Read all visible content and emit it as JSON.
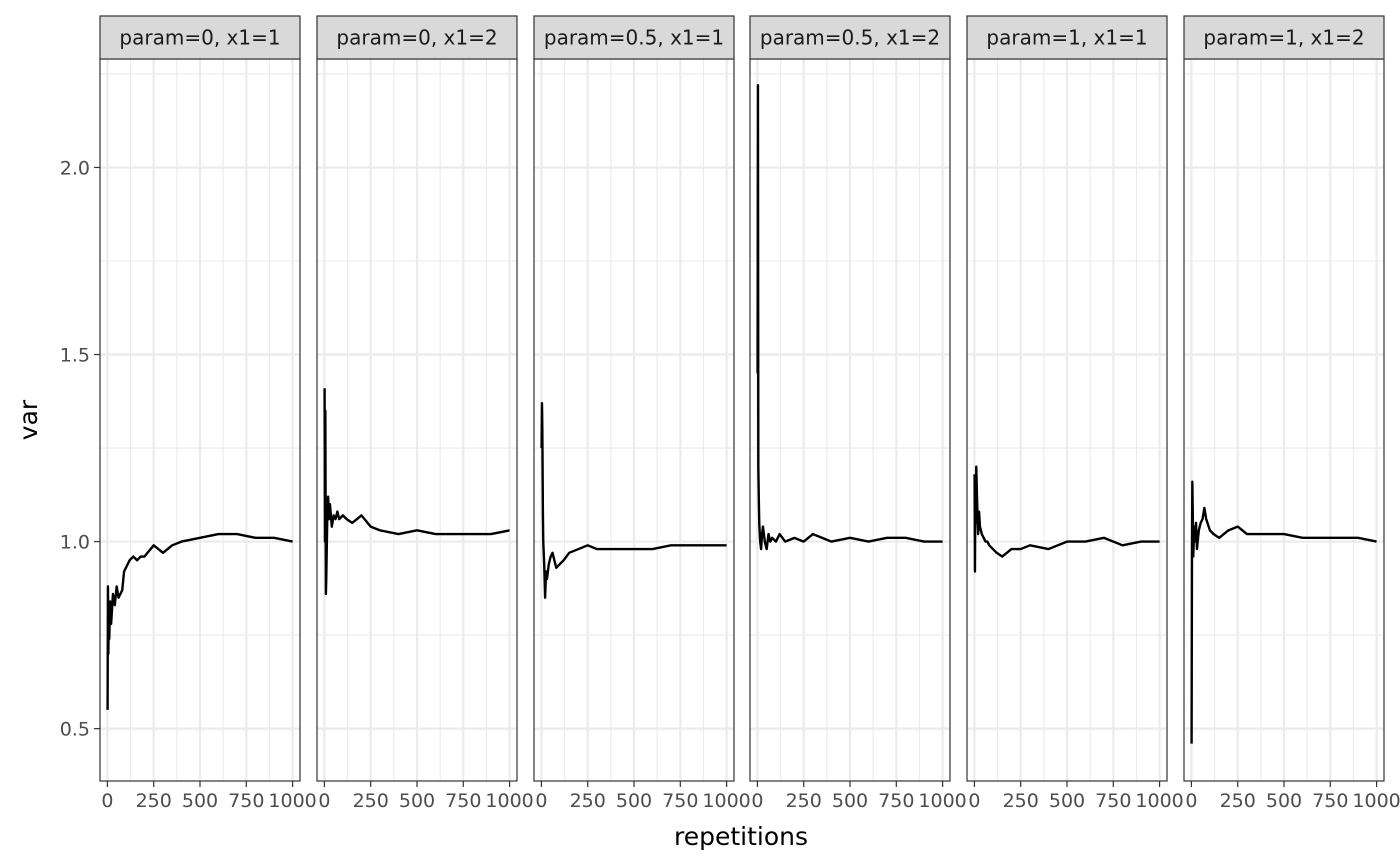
{
  "chart_data": {
    "type": "line",
    "facet_layout": "single row of 6 panels",
    "xlabel": "repetitions",
    "ylabel": "var",
    "xlim": [
      -40,
      1040
    ],
    "ylim": [
      0.36,
      2.29
    ],
    "x_ticks": [
      0,
      250,
      500,
      750,
      1000
    ],
    "x_tick_labels": [
      "0",
      "250",
      "500",
      "750",
      "1000"
    ],
    "y_ticks": [
      0.5,
      1.0,
      1.5,
      2.0
    ],
    "y_tick_labels": [
      "0.5",
      "1.0",
      "1.5",
      "2.0"
    ],
    "grid": true,
    "line_color": "#000000",
    "panels": [
      {
        "strip": "param=0, x1=1",
        "x": [
          1,
          3,
          5,
          8,
          10,
          15,
          20,
          25,
          30,
          40,
          50,
          60,
          70,
          80,
          90,
          100,
          120,
          140,
          160,
          180,
          200,
          250,
          300,
          350,
          400,
          500,
          600,
          700,
          800,
          900,
          1000
        ],
        "y": [
          0.55,
          0.88,
          0.7,
          0.8,
          0.74,
          0.84,
          0.78,
          0.82,
          0.86,
          0.83,
          0.88,
          0.85,
          0.86,
          0.87,
          0.92,
          0.93,
          0.95,
          0.96,
          0.95,
          0.96,
          0.96,
          0.99,
          0.97,
          0.99,
          1.0,
          1.01,
          1.02,
          1.02,
          1.01,
          1.01,
          1.0
        ]
      },
      {
        "strip": "param=0, x1=2",
        "x": [
          1,
          3,
          5,
          8,
          10,
          15,
          20,
          25,
          30,
          40,
          50,
          60,
          70,
          80,
          100,
          120,
          150,
          200,
          250,
          300,
          400,
          500,
          600,
          700,
          800,
          900,
          1000
        ],
        "y": [
          1.41,
          1.0,
          1.35,
          0.86,
          0.9,
          1.05,
          1.12,
          1.06,
          1.1,
          1.04,
          1.07,
          1.06,
          1.08,
          1.06,
          1.07,
          1.06,
          1.05,
          1.07,
          1.04,
          1.03,
          1.02,
          1.03,
          1.02,
          1.02,
          1.02,
          1.02,
          1.03
        ]
      },
      {
        "strip": "param=0.5, x1=1",
        "x": [
          1,
          3,
          5,
          8,
          10,
          15,
          20,
          25,
          30,
          40,
          50,
          60,
          70,
          80,
          100,
          120,
          150,
          200,
          250,
          300,
          400,
          500,
          600,
          700,
          800,
          900,
          1000
        ],
        "y": [
          1.25,
          1.37,
          1.3,
          1.08,
          1.0,
          0.94,
          0.85,
          0.92,
          0.9,
          0.94,
          0.96,
          0.97,
          0.95,
          0.93,
          0.94,
          0.95,
          0.97,
          0.98,
          0.99,
          0.98,
          0.98,
          0.98,
          0.98,
          0.99,
          0.99,
          0.99,
          0.99
        ]
      },
      {
        "strip": "param=0.5, x1=2",
        "x": [
          1,
          3,
          5,
          8,
          10,
          15,
          20,
          25,
          30,
          40,
          50,
          60,
          70,
          80,
          100,
          120,
          150,
          200,
          250,
          300,
          400,
          500,
          600,
          700,
          800,
          900,
          1000
        ],
        "y": [
          1.45,
          2.22,
          1.2,
          1.1,
          1.05,
          1.0,
          0.98,
          1.02,
          1.04,
          1.0,
          0.98,
          1.02,
          1.0,
          1.01,
          1.0,
          1.02,
          1.0,
          1.01,
          1.0,
          1.02,
          1.0,
          1.01,
          1.0,
          1.01,
          1.01,
          1.0,
          1.0
        ]
      },
      {
        "strip": "param=1, x1=1",
        "x": [
          1,
          3,
          5,
          8,
          10,
          15,
          20,
          25,
          30,
          40,
          50,
          60,
          70,
          80,
          100,
          120,
          150,
          200,
          250,
          300,
          400,
          500,
          600,
          700,
          800,
          900,
          1000
        ],
        "y": [
          1.18,
          0.92,
          1.15,
          1.05,
          1.2,
          1.1,
          1.02,
          1.08,
          1.04,
          1.02,
          1.01,
          1.0,
          1.0,
          0.99,
          0.98,
          0.97,
          0.96,
          0.98,
          0.98,
          0.99,
          0.98,
          1.0,
          1.0,
          1.01,
          0.99,
          1.0,
          1.0
        ]
      },
      {
        "strip": "param=1, x1=2",
        "x": [
          1,
          3,
          5,
          8,
          10,
          15,
          20,
          25,
          30,
          40,
          50,
          60,
          70,
          80,
          100,
          120,
          150,
          200,
          250,
          300,
          400,
          500,
          600,
          700,
          800,
          900,
          1000
        ],
        "y": [
          0.46,
          0.95,
          1.16,
          1.05,
          0.96,
          1.04,
          1.0,
          1.05,
          0.98,
          1.03,
          1.05,
          1.06,
          1.09,
          1.06,
          1.03,
          1.02,
          1.01,
          1.03,
          1.04,
          1.02,
          1.02,
          1.02,
          1.01,
          1.01,
          1.01,
          1.01,
          1.0
        ]
      }
    ]
  }
}
